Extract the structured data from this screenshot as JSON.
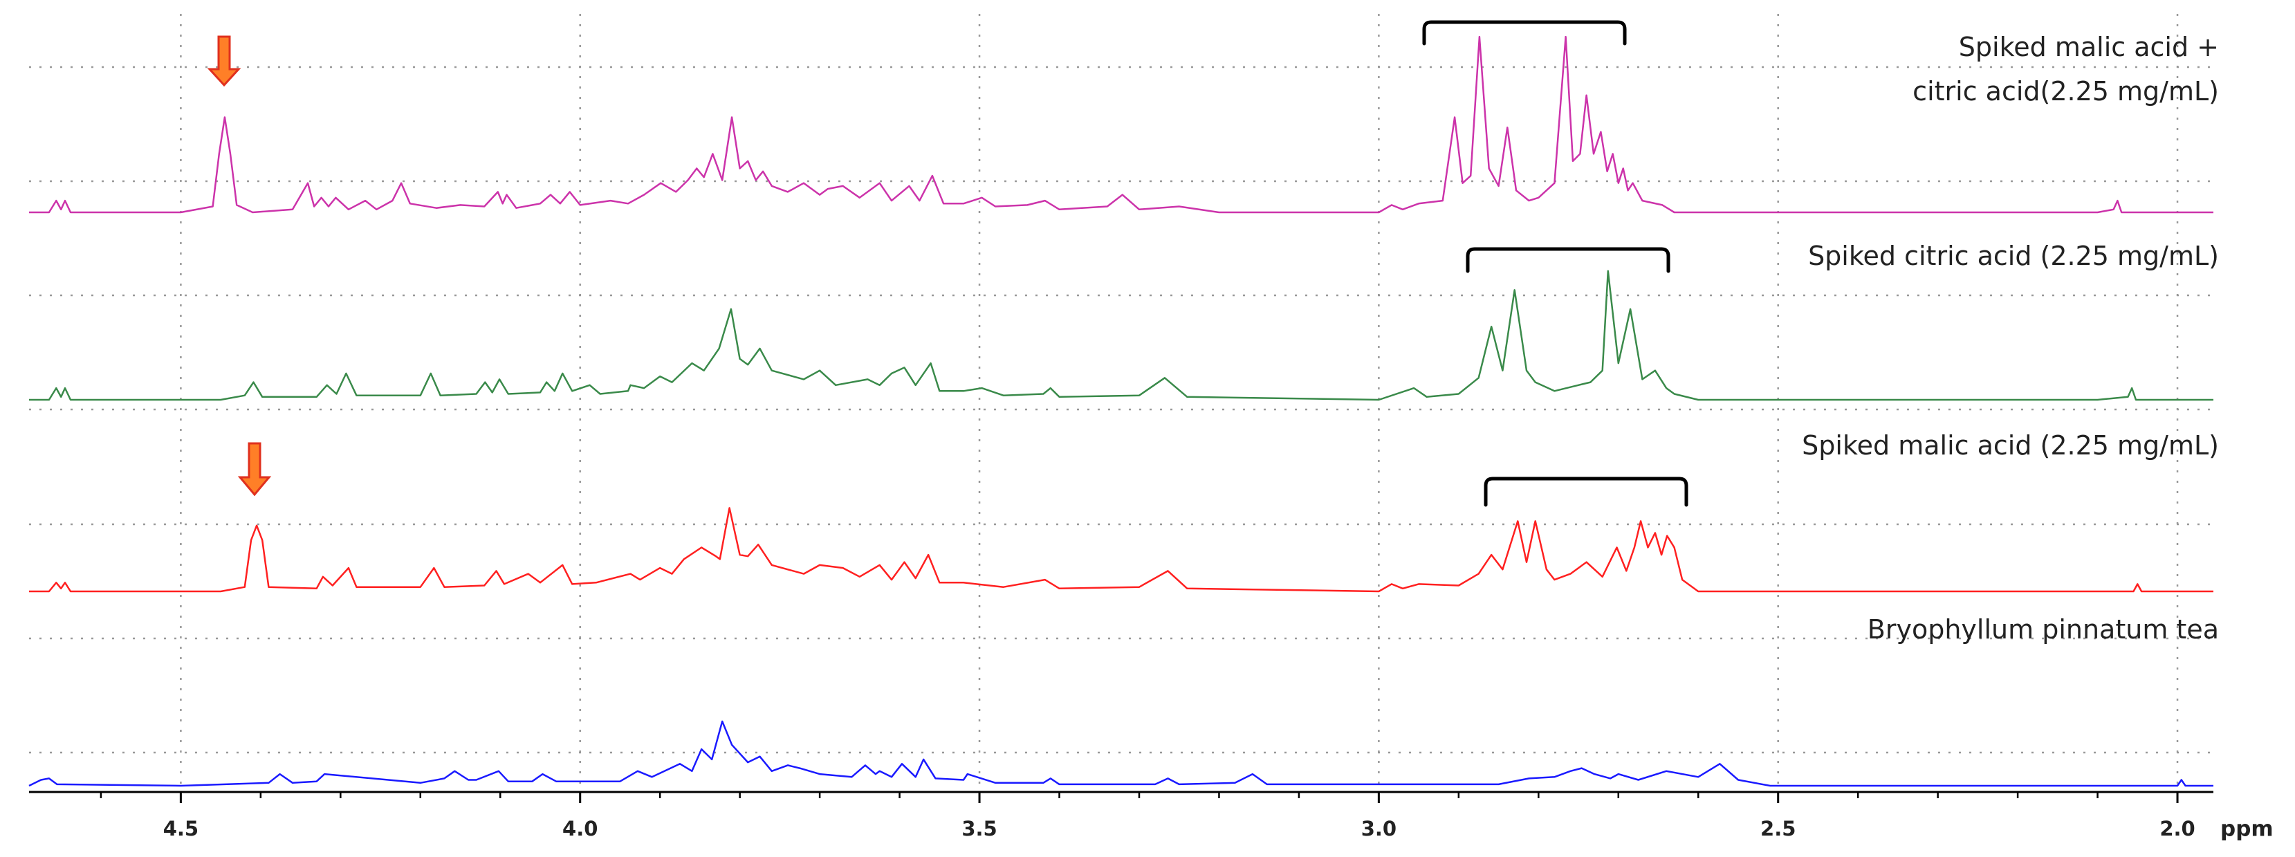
{
  "chart_data": {
    "type": "line",
    "x_label": "ppm",
    "xlim": [
      4.69,
      1.955
    ],
    "xticks": [
      {
        "value": 4.5,
        "label": "4.5"
      },
      {
        "value": 4.0,
        "label": "4.0"
      },
      {
        "value": 3.5,
        "label": "3.5"
      },
      {
        "value": 3.0,
        "label": "3.0"
      },
      {
        "value": 2.5,
        "label": "2.5"
      },
      {
        "value": 2.0,
        "label": "2.0"
      }
    ],
    "xminorticks": [
      4.6,
      4.4,
      4.3,
      4.2,
      4.1,
      3.9,
      3.8,
      3.7,
      3.6,
      3.4,
      3.3,
      3.2,
      3.1,
      2.9,
      2.8,
      2.7,
      2.6,
      2.4,
      2.3,
      2.2,
      2.1
    ],
    "grid": true,
    "series": [
      {
        "name": "Spiked malic acid + citric acid(2.25 mg/mL)",
        "color": "#cc33aa",
        "x": [
          4.69,
          4.665,
          4.656,
          4.65,
          4.645,
          4.638,
          4.5,
          4.46,
          4.452,
          4.445,
          4.438,
          4.43,
          4.41,
          4.36,
          4.341,
          4.333,
          4.324,
          4.315,
          4.306,
          4.29,
          4.269,
          4.255,
          4.235,
          4.224,
          4.213,
          4.18,
          4.15,
          4.12,
          4.103,
          4.097,
          4.092,
          4.08,
          4.05,
          4.037,
          4.025,
          4.013,
          4.0,
          3.962,
          3.94,
          3.92,
          3.899,
          3.88,
          3.865,
          3.854,
          3.845,
          3.834,
          3.822,
          3.81,
          3.8,
          3.79,
          3.78,
          3.771,
          3.76,
          3.74,
          3.72,
          3.7,
          3.69,
          3.671,
          3.65,
          3.625,
          3.61,
          3.588,
          3.575,
          3.559,
          3.545,
          3.52,
          3.497,
          3.48,
          3.44,
          3.418,
          3.4,
          3.34,
          3.321,
          3.3,
          3.25,
          3.2,
          3.0,
          2.984,
          2.97,
          2.95,
          2.92,
          2.905,
          2.895,
          2.885,
          2.874,
          2.862,
          2.85,
          2.839,
          2.828,
          2.812,
          2.8,
          2.78,
          2.766,
          2.757,
          2.748,
          2.74,
          2.731,
          2.722,
          2.714,
          2.707,
          2.7,
          2.694,
          2.688,
          2.682,
          2.67,
          2.645,
          2.63,
          2.4,
          2.1,
          2.08,
          2.075,
          2.07,
          1.955
        ],
        "values": [
          0,
          0,
          8,
          2,
          8,
          0,
          0,
          4,
          40,
          65,
          40,
          5,
          0,
          2,
          20,
          4,
          10,
          4,
          10,
          2,
          8,
          2,
          8,
          20,
          6,
          3,
          5,
          4,
          14,
          6,
          12,
          3,
          6,
          12,
          6,
          14,
          5,
          8,
          6,
          12,
          20,
          14,
          22,
          30,
          24,
          40,
          22,
          65,
          30,
          35,
          22,
          28,
          18,
          14,
          20,
          12,
          16,
          18,
          10,
          20,
          8,
          18,
          8,
          25,
          6,
          6,
          10,
          4,
          5,
          8,
          2,
          4,
          12,
          2,
          4,
          0,
          0,
          5,
          2,
          6,
          8,
          65,
          20,
          25,
          120,
          30,
          18,
          58,
          15,
          8,
          10,
          20,
          120,
          35,
          40,
          80,
          40,
          55,
          28,
          40,
          20,
          30,
          15,
          20,
          8,
          5,
          0,
          0,
          0,
          2,
          8,
          0,
          0
        ]
      },
      {
        "name": "Spiked citric acid (2.25 mg/mL)",
        "color": "#3a8a4a",
        "x": [
          4.69,
          4.665,
          4.656,
          4.65,
          4.645,
          4.638,
          4.45,
          4.42,
          4.409,
          4.398,
          4.33,
          4.317,
          4.305,
          4.293,
          4.28,
          4.2,
          4.187,
          4.175,
          4.13,
          4.119,
          4.11,
          4.101,
          4.09,
          4.05,
          4.042,
          4.032,
          4.022,
          4.01,
          3.988,
          3.975,
          3.94,
          3.937,
          3.92,
          3.9,
          3.885,
          3.86,
          3.845,
          3.826,
          3.811,
          3.8,
          3.79,
          3.775,
          3.76,
          3.72,
          3.7,
          3.68,
          3.64,
          3.625,
          3.61,
          3.594,
          3.58,
          3.561,
          3.55,
          3.52,
          3.497,
          3.47,
          3.42,
          3.411,
          3.4,
          3.3,
          3.268,
          3.24,
          3.0,
          2.956,
          2.94,
          2.9,
          2.875,
          2.859,
          2.845,
          2.83,
          2.815,
          2.804,
          2.78,
          2.75,
          2.735,
          2.72,
          2.713,
          2.7,
          2.685,
          2.67,
          2.654,
          2.64,
          2.63,
          2.6,
          2.1,
          2.062,
          2.057,
          2.052,
          1.955
        ],
        "values": [
          0,
          0,
          8,
          2,
          8,
          0,
          0,
          3,
          12,
          2,
          2,
          10,
          4,
          18,
          3,
          3,
          18,
          3,
          4,
          12,
          5,
          14,
          4,
          5,
          12,
          6,
          18,
          6,
          10,
          4,
          6,
          10,
          8,
          16,
          12,
          25,
          20,
          35,
          62,
          28,
          24,
          35,
          20,
          14,
          20,
          10,
          14,
          10,
          18,
          22,
          10,
          25,
          6,
          6,
          8,
          3,
          4,
          8,
          2,
          3,
          15,
          2,
          0,
          8,
          2,
          4,
          15,
          50,
          20,
          75,
          20,
          12,
          6,
          10,
          12,
          20,
          88,
          25,
          62,
          14,
          20,
          8,
          4,
          0,
          0,
          2,
          8,
          0,
          0
        ]
      },
      {
        "name": "Spiked malic acid (2.25 mg/mL)",
        "color": "#ff2020",
        "x": [
          4.69,
          4.665,
          4.656,
          4.65,
          4.645,
          4.638,
          4.45,
          4.42,
          4.412,
          4.405,
          4.398,
          4.39,
          4.33,
          4.322,
          4.31,
          4.29,
          4.28,
          4.2,
          4.183,
          4.17,
          4.12,
          4.105,
          4.095,
          4.065,
          4.05,
          4.022,
          4.01,
          3.98,
          3.937,
          3.925,
          3.9,
          3.885,
          3.87,
          3.848,
          3.83,
          3.825,
          3.813,
          3.8,
          3.79,
          3.777,
          3.76,
          3.72,
          3.7,
          3.671,
          3.65,
          3.625,
          3.61,
          3.594,
          3.58,
          3.564,
          3.55,
          3.52,
          3.47,
          3.418,
          3.4,
          3.3,
          3.264,
          3.24,
          3.0,
          2.984,
          2.97,
          2.95,
          2.9,
          2.875,
          2.859,
          2.845,
          2.826,
          2.815,
          2.804,
          2.79,
          2.78,
          2.76,
          2.74,
          2.72,
          2.702,
          2.69,
          2.68,
          2.672,
          2.663,
          2.654,
          2.646,
          2.639,
          2.63,
          2.62,
          2.6,
          2.1,
          2.055,
          2.05,
          2.045,
          1.955
        ],
        "values": [
          0,
          0,
          6,
          2,
          6,
          0,
          0,
          3,
          35,
          45,
          35,
          3,
          2,
          10,
          4,
          16,
          3,
          3,
          16,
          3,
          4,
          14,
          5,
          12,
          6,
          18,
          5,
          6,
          12,
          8,
          16,
          12,
          22,
          30,
          24,
          22,
          57,
          25,
          24,
          32,
          18,
          12,
          18,
          16,
          10,
          18,
          8,
          20,
          9,
          25,
          6,
          6,
          3,
          8,
          2,
          3,
          14,
          2,
          0,
          5,
          2,
          5,
          4,
          12,
          25,
          15,
          48,
          20,
          48,
          15,
          8,
          12,
          20,
          10,
          30,
          14,
          30,
          48,
          30,
          40,
          25,
          38,
          30,
          8,
          0,
          0,
          0,
          5,
          0,
          0
        ]
      },
      {
        "name": "Bryophyllum pinnatum tea",
        "color": "#1a1aff",
        "x": [
          4.69,
          4.675,
          4.665,
          4.655,
          4.5,
          4.39,
          4.376,
          4.36,
          4.33,
          4.32,
          4.2,
          4.17,
          4.157,
          4.14,
          4.13,
          4.102,
          4.09,
          4.06,
          4.047,
          4.03,
          3.95,
          3.928,
          3.91,
          3.875,
          3.86,
          3.848,
          3.835,
          3.822,
          3.81,
          3.79,
          3.775,
          3.76,
          3.74,
          3.725,
          3.7,
          3.66,
          3.643,
          3.63,
          3.625,
          3.61,
          3.597,
          3.58,
          3.57,
          3.555,
          3.52,
          3.515,
          3.48,
          3.42,
          3.411,
          3.4,
          3.28,
          3.264,
          3.25,
          3.18,
          3.158,
          3.14,
          2.85,
          2.812,
          2.78,
          2.76,
          2.746,
          2.73,
          2.71,
          2.7,
          2.675,
          2.64,
          2.6,
          2.573,
          2.55,
          2.51,
          2.1,
          2.0,
          1.995,
          1.99,
          1.955
        ],
        "values": [
          0,
          4,
          5,
          1,
          0,
          2,
          8,
          2,
          3,
          8,
          2,
          5,
          10,
          4,
          4,
          10,
          3,
          3,
          8,
          3,
          3,
          10,
          6,
          15,
          10,
          25,
          18,
          44,
          28,
          16,
          20,
          10,
          14,
          12,
          8,
          6,
          14,
          8,
          10,
          6,
          15,
          6,
          18,
          5,
          4,
          8,
          2,
          2,
          5,
          1,
          1,
          5,
          1,
          2,
          8,
          1,
          1,
          5,
          6,
          10,
          12,
          8,
          5,
          8,
          4,
          10,
          6,
          15,
          4,
          0,
          0,
          0,
          4,
          0,
          0
        ]
      }
    ]
  }
}
